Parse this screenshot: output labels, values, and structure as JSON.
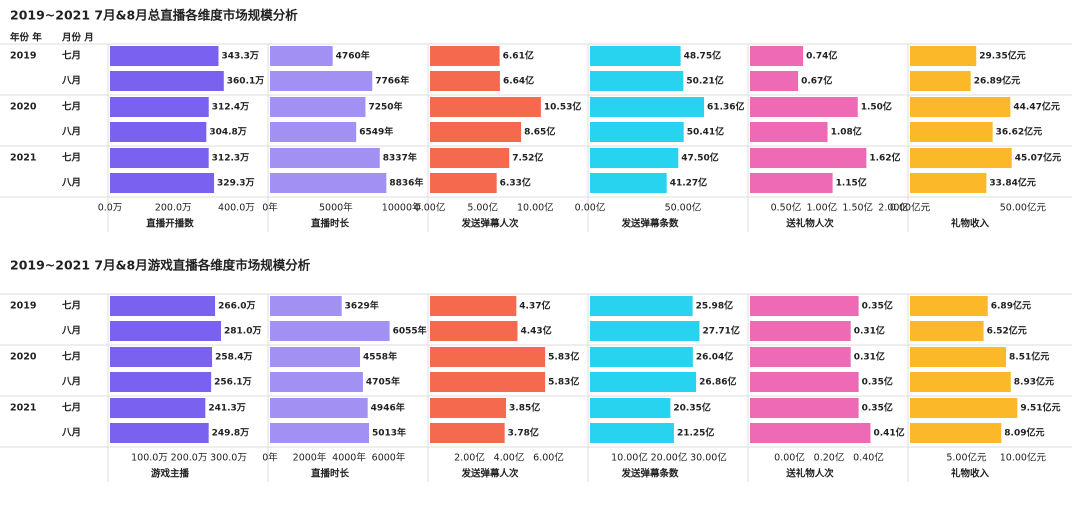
{
  "chart_data": [
    {
      "type": "bar",
      "title": "2019~2021 7月&8月总直播各维度市场规模分析",
      "header": [
        "年份 年",
        "月份 月"
      ],
      "years": [
        "2019",
        "2020",
        "2021"
      ],
      "categories": [
        "七月",
        "八月",
        "七月",
        "八月",
        "七月",
        "八月"
      ],
      "charts": [
        {
          "xlabel": "直播开播数",
          "color": "#7b61f0",
          "xlim": [
            0,
            500
          ],
          "xticks": [
            {
              "value": 0,
              "label": "0.0万"
            },
            {
              "value": 200,
              "label": "200.0万"
            },
            {
              "value": 400,
              "label": "400.0万"
            }
          ],
          "values": [
            343.3,
            360.1,
            312.4,
            304.8,
            312.3,
            329.3
          ],
          "value_labels": [
            "343.3万",
            "360.1万",
            "312.4万",
            "304.8万",
            "312.3万",
            "329.3万"
          ]
        },
        {
          "xlabel": "直播时长",
          "color": "#a290f2",
          "xlim": [
            0,
            12000
          ],
          "xticks": [
            {
              "value": 0,
              "label": "0年"
            },
            {
              "value": 5000,
              "label": "5000年"
            },
            {
              "value": 10000,
              "label": "10000年"
            }
          ],
          "values": [
            4760,
            7766,
            7250,
            6549,
            8337,
            8836
          ],
          "value_labels": [
            "4760年",
            "7766年",
            "7250年",
            "6549年",
            "8337年",
            "8836年"
          ]
        },
        {
          "xlabel": "发送弹幕人次",
          "color": "#f5694f",
          "xlim": [
            0,
            15
          ],
          "xticks": [
            {
              "value": 0,
              "label": "0.00亿"
            },
            {
              "value": 5,
              "label": "5.00亿"
            },
            {
              "value": 10,
              "label": "10.00亿"
            }
          ],
          "values": [
            6.61,
            6.64,
            10.53,
            8.65,
            7.52,
            6.33
          ],
          "value_labels": [
            "6.61亿",
            "6.64亿",
            "10.53亿",
            "8.65亿",
            "7.52亿",
            "6.33亿"
          ]
        },
        {
          "xlabel": "发送弹幕条数",
          "color": "#27d3ee",
          "xlim": [
            0,
            85
          ],
          "xticks": [
            {
              "value": 0,
              "label": "0.00亿"
            },
            {
              "value": 50,
              "label": "50.00亿"
            }
          ],
          "values": [
            48.75,
            50.21,
            61.36,
            50.41,
            47.5,
            41.27
          ],
          "value_labels": [
            "48.75亿",
            "50.21亿",
            "61.36亿",
            "50.41亿",
            "47.50亿",
            "41.27亿"
          ]
        },
        {
          "xlabel": "送礼物人次",
          "color": "#ee6ab5",
          "xlim": [
            0,
            2.2
          ],
          "xticks": [
            {
              "value": 0.5,
              "label": "0.50亿"
            },
            {
              "value": 1,
              "label": "1.00亿"
            },
            {
              "value": 1.5,
              "label": "1.50亿"
            },
            {
              "value": 2,
              "label": "2.00亿"
            }
          ],
          "values": [
            0.74,
            0.67,
            1.5,
            1.08,
            1.62,
            1.15
          ],
          "value_labels": [
            "0.74亿",
            "0.67亿",
            "1.50亿",
            "1.08亿",
            "1.62亿",
            "1.15亿"
          ]
        },
        {
          "xlabel": "礼物收入",
          "color": "#fbb829",
          "xlim": [
            0,
            70
          ],
          "xticks": [
            {
              "value": 0,
              "label": "0.00亿元"
            },
            {
              "value": 50,
              "label": "50.00亿元"
            }
          ],
          "values": [
            29.35,
            26.89,
            44.47,
            36.62,
            45.07,
            33.84
          ],
          "value_labels": [
            "29.35亿元",
            "26.89亿元",
            "44.47亿元",
            "36.62亿元",
            "45.07亿元",
            "33.84亿元"
          ]
        }
      ]
    },
    {
      "type": "bar",
      "title": "2019~2021 7月&8月游戏直播各维度市场规模分析",
      "years": [
        "2019",
        "2020",
        "2021"
      ],
      "categories": [
        "七月",
        "八月",
        "七月",
        "八月",
        "七月",
        "八月"
      ],
      "charts": [
        {
          "xlabel": "游戏主播",
          "color": "#7b61f0",
          "xlim": [
            0,
            400
          ],
          "xticks": [
            {
              "value": 100,
              "label": "100.0万"
            },
            {
              "value": 200,
              "label": "200.0万"
            },
            {
              "value": 300,
              "label": "300.0万"
            }
          ],
          "values": [
            266,
            281,
            258.4,
            256.1,
            241.3,
            249.8
          ],
          "value_labels": [
            "266.0万",
            "281.0万",
            "258.4万",
            "256.1万",
            "241.3万",
            "249.8万"
          ]
        },
        {
          "xlabel": "直播时长",
          "color": "#a290f2",
          "xlim": [
            0,
            8000
          ],
          "xticks": [
            {
              "value": 0,
              "label": "0年"
            },
            {
              "value": 2000,
              "label": "2000年"
            },
            {
              "value": 4000,
              "label": "4000年"
            },
            {
              "value": 6000,
              "label": "6000年"
            }
          ],
          "values": [
            3629,
            6055,
            4558,
            4705,
            4946,
            5013
          ],
          "value_labels": [
            "3629年",
            "6055年",
            "4558年",
            "4705年",
            "4946年",
            "5013年"
          ]
        },
        {
          "xlabel": "发送弹幕人次",
          "color": "#f5694f",
          "xlim": [
            0,
            8
          ],
          "xticks": [
            {
              "value": 2,
              "label": "2.00亿"
            },
            {
              "value": 4,
              "label": "4.00亿"
            },
            {
              "value": 6,
              "label": "6.00亿"
            }
          ],
          "values": [
            4.37,
            4.43,
            5.83,
            5.83,
            3.85,
            3.78
          ],
          "value_labels": [
            "4.37亿",
            "4.43亿",
            "5.83亿",
            "5.83亿",
            "3.85亿",
            "3.78亿"
          ]
        },
        {
          "xlabel": "发送弹幕条数",
          "color": "#27d3ee",
          "xlim": [
            0,
            40
          ],
          "xticks": [
            {
              "value": 10,
              "label": "10.00亿"
            },
            {
              "value": 20,
              "label": "20.00亿"
            },
            {
              "value": 30,
              "label": "30.00亿"
            }
          ],
          "values": [
            25.98,
            27.71,
            26.04,
            26.86,
            20.35,
            21.25
          ],
          "value_labels": [
            "25.98亿",
            "27.71亿",
            "26.04亿",
            "26.86亿",
            "20.35亿",
            "21.25亿"
          ]
        },
        {
          "xlabel": "送礼物人次",
          "color": "#ee6ab5",
          "xlim": [
            -0.2,
            0.6
          ],
          "xticks": [
            {
              "value": 0,
              "label": "0.00亿"
            },
            {
              "value": 0.2,
              "label": "0.20亿"
            },
            {
              "value": 0.4,
              "label": "0.40亿"
            }
          ],
          "values": [
            0.35,
            0.31,
            0.31,
            0.35,
            0.35,
            0.41
          ],
          "value_labels": [
            "0.35亿",
            "0.31亿",
            "0.31亿",
            "0.35亿",
            "0.35亿",
            "0.41亿"
          ]
        },
        {
          "xlabel": "礼物收入",
          "color": "#fbb829",
          "xlim": [
            0,
            14
          ],
          "xticks": [
            {
              "value": 5,
              "label": "5.00亿元"
            },
            {
              "value": 10,
              "label": "10.00亿元"
            }
          ],
          "values": [
            6.89,
            6.52,
            8.51,
            8.93,
            9.51,
            8.09
          ],
          "value_labels": [
            "6.89亿元",
            "6.52亿元",
            "8.51亿元",
            "8.93亿元",
            "9.51亿元",
            "8.09亿元"
          ]
        }
      ]
    }
  ]
}
